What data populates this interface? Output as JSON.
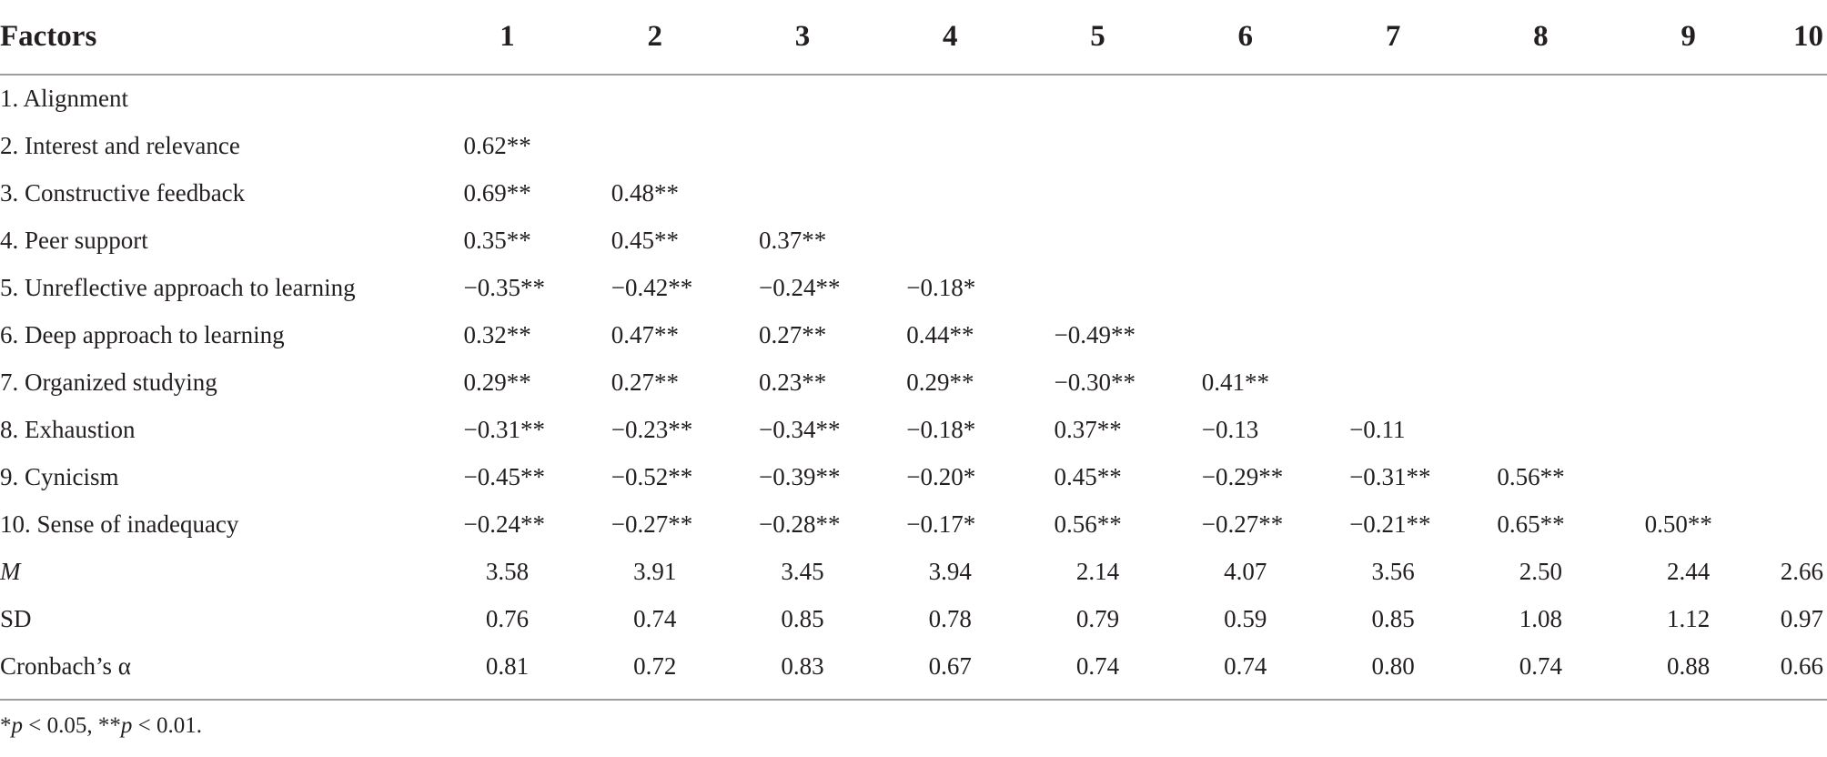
{
  "header": {
    "factors_label": "Factors",
    "columns": [
      "1",
      "2",
      "3",
      "4",
      "5",
      "6",
      "7",
      "8",
      "9",
      "10"
    ]
  },
  "rows": [
    {
      "label": "1. Alignment",
      "cells": [
        "",
        "",
        "",
        "",
        "",
        "",
        "",
        "",
        "",
        ""
      ]
    },
    {
      "label": "2. Interest and relevance",
      "cells": [
        "0.62**",
        "",
        "",
        "",
        "",
        "",
        "",
        "",
        "",
        ""
      ]
    },
    {
      "label": "3. Constructive feedback",
      "cells": [
        "0.69**",
        "0.48**",
        "",
        "",
        "",
        "",
        "",
        "",
        "",
        ""
      ]
    },
    {
      "label": "4. Peer support",
      "cells": [
        "0.35**",
        "0.45**",
        "0.37**",
        "",
        "",
        "",
        "",
        "",
        "",
        ""
      ]
    },
    {
      "label": "5. Unreflective approach to learning",
      "cells": [
        "−0.35**",
        "−0.42**",
        "−0.24**",
        "−0.18*",
        "",
        "",
        "",
        "",
        "",
        ""
      ]
    },
    {
      "label": "6. Deep approach to learning",
      "cells": [
        "0.32**",
        "0.47**",
        "0.27**",
        "0.44**",
        "−0.49**",
        "",
        "",
        "",
        "",
        ""
      ]
    },
    {
      "label": "7. Organized studying",
      "cells": [
        "0.29**",
        "0.27**",
        "0.23**",
        "0.29**",
        "−0.30**",
        "0.41**",
        "",
        "",
        "",
        ""
      ]
    },
    {
      "label": "8. Exhaustion",
      "cells": [
        "−0.31**",
        "−0.23**",
        "−0.34**",
        "−0.18*",
        "0.37**",
        "−0.13",
        "−0.11",
        "",
        "",
        ""
      ]
    },
    {
      "label": "9. Cynicism",
      "cells": [
        "−0.45**",
        "−0.52**",
        "−0.39**",
        "−0.20*",
        "0.45**",
        "−0.29**",
        "−0.31**",
        "0.56**",
        "",
        ""
      ]
    },
    {
      "label": "10. Sense of inadequacy",
      "cells": [
        "−0.24**",
        "−0.27**",
        "−0.28**",
        "−0.17*",
        "0.56**",
        "−0.27**",
        "−0.21**",
        "0.65**",
        "0.50**",
        ""
      ]
    },
    {
      "label": "M",
      "italic": true,
      "cells": [
        "3.58",
        "3.91",
        "3.45",
        "3.94",
        "2.14",
        "4.07",
        "3.56",
        "2.50",
        "2.44",
        "2.66"
      ]
    },
    {
      "label": "SD",
      "cells": [
        "0.76",
        "0.74",
        "0.85",
        "0.78",
        "0.79",
        "0.59",
        "0.85",
        "1.08",
        "1.12",
        "0.97"
      ]
    },
    {
      "label": "Cronbach’s α",
      "cells": [
        "0.81",
        "0.72",
        "0.83",
        "0.67",
        "0.74",
        "0.74",
        "0.80",
        "0.74",
        "0.88",
        "0.66"
      ]
    }
  ],
  "footnote": {
    "sym1": "*",
    "p1": "p",
    "t1": " < 0.05, ",
    "sym2": "**",
    "p2": "p",
    "t2": " < 0.01."
  }
}
